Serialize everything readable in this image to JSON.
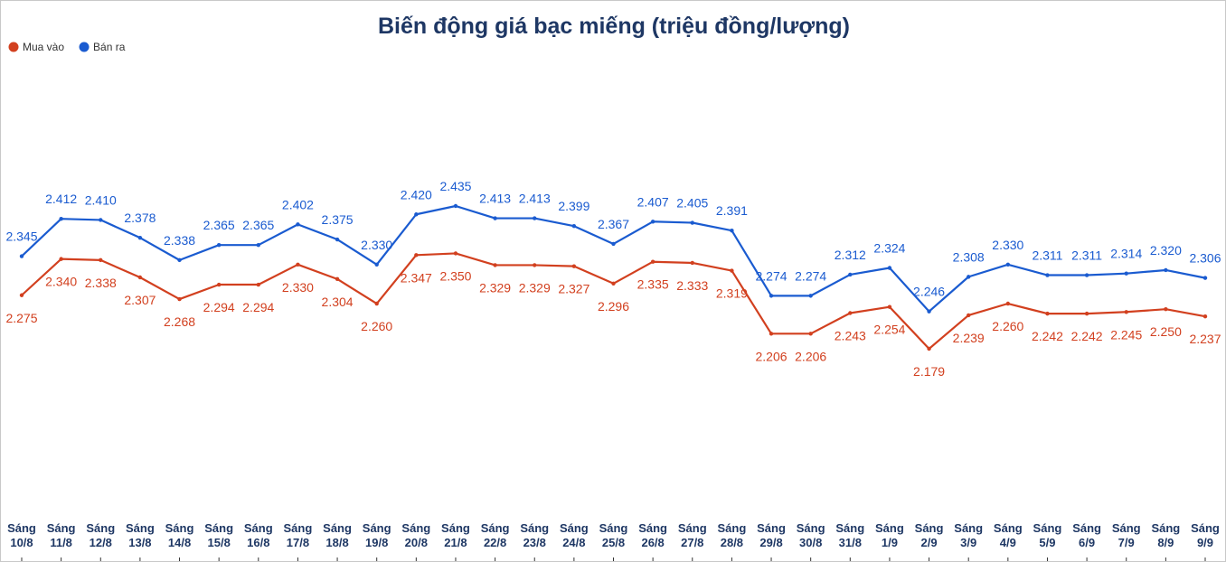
{
  "chart_data": {
    "type": "line",
    "title": "Biến động giá bạc miếng (triệu đồng/lượng)",
    "categories": [
      "Sáng 10/8",
      "Sáng 11/8",
      "Sáng 12/8",
      "Sáng 13/8",
      "Sáng 14/8",
      "Sáng 15/8",
      "Sáng 16/8",
      "Sáng 17/8",
      "Sáng 18/8",
      "Sáng 19/8",
      "Sáng 20/8",
      "Sáng 21/8",
      "Sáng 22/8",
      "Sáng 23/8",
      "Sáng 24/8",
      "Sáng 25/8",
      "Sáng 26/8",
      "Sáng 27/8",
      "Sáng 28/8",
      "Sáng 29/8",
      "Sáng 30/8",
      "Sáng 31/8",
      "Sáng 1/9",
      "Sáng 2/9",
      "Sáng 3/9",
      "Sáng 4/9",
      "Sáng 5/9",
      "Sáng 6/9",
      "Sáng 7/9",
      "Sáng 8/9",
      "Sáng 9/9"
    ],
    "legend": "top-left",
    "series": [
      {
        "name": "Mua vào",
        "color": "#d2401f",
        "values": [
          2.275,
          2.34,
          2.338,
          2.307,
          2.268,
          2.294,
          2.294,
          2.33,
          2.304,
          2.26,
          2.347,
          2.35,
          2.329,
          2.329,
          2.327,
          2.296,
          2.335,
          2.333,
          2.319,
          2.206,
          2.206,
          2.243,
          2.254,
          2.179,
          2.239,
          2.26,
          2.242,
          2.242,
          2.245,
          2.25,
          2.237
        ],
        "value_labels": [
          "2.275",
          "2.340",
          "2.338",
          "2.307",
          "2.268",
          "2.294",
          "2.294",
          "2.330",
          "2.304",
          "2.260",
          "2.347",
          "2.350",
          "2.329",
          "2.329",
          "2.327",
          "2.296",
          "2.335",
          "2.333",
          "2.319",
          "2.206",
          "2.206",
          "2.243",
          "2.254",
          "2.179",
          "2.239",
          "2.260",
          "2.242",
          "2.242",
          "2.245",
          "2.250",
          "2.237"
        ]
      },
      {
        "name": "Bán ra",
        "color": "#1a5bd0",
        "values": [
          2.345,
          2.412,
          2.41,
          2.378,
          2.338,
          2.365,
          2.365,
          2.402,
          2.375,
          2.33,
          2.42,
          2.435,
          2.413,
          2.413,
          2.399,
          2.367,
          2.407,
          2.405,
          2.391,
          2.274,
          2.274,
          2.312,
          2.324,
          2.246,
          2.308,
          2.33,
          2.311,
          2.311,
          2.314,
          2.32,
          2.306
        ],
        "value_labels": [
          "2.345",
          "2.412",
          "2.410",
          "2.378",
          "2.338",
          "2.365",
          "2.365",
          "2.402",
          "2.375",
          "2.330",
          "2.420",
          "2.435",
          "2.413",
          "2.413",
          "2.399",
          "2.367",
          "2.407",
          "2.405",
          "2.391",
          "2.274",
          "2.274",
          "2.312",
          "2.324",
          "2.246",
          "2.308",
          "2.330",
          "2.311",
          "2.311",
          "2.314",
          "2.320",
          "2.306"
        ]
      }
    ]
  }
}
